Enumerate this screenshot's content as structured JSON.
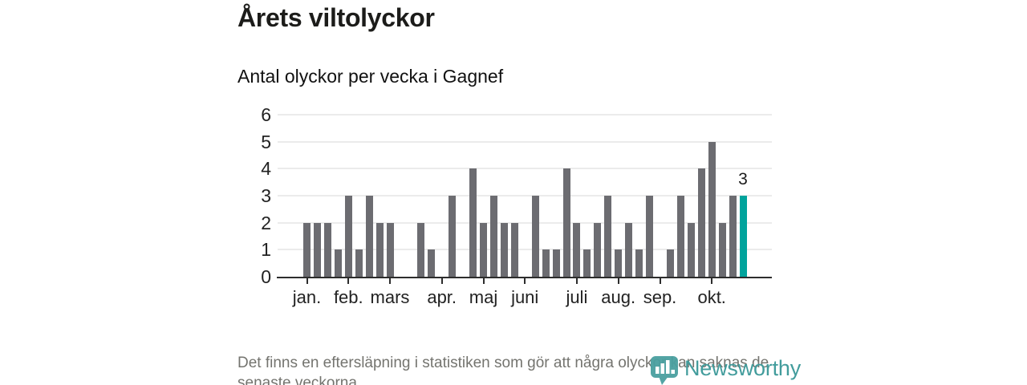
{
  "header": {
    "title": "Årets viltolyckor",
    "subtitle": "Antal olyckor per vecka i Gagnef"
  },
  "chart_data": {
    "type": "bar",
    "title": "Årets viltolyckor",
    "subtitle": "Antal olyckor per vecka i Gagnef",
    "x_unit": "vecka (week of year)",
    "weeks": [
      1,
      2,
      3,
      4,
      5,
      6,
      7,
      8,
      9,
      10,
      11,
      12,
      13,
      14,
      15,
      16,
      17,
      18,
      19,
      20,
      21,
      22,
      23,
      24,
      25,
      26,
      27,
      28,
      29,
      30,
      31,
      32,
      33,
      34,
      35,
      36,
      37,
      38,
      39,
      40,
      41,
      42,
      43
    ],
    "values": [
      2,
      2,
      2,
      1,
      3,
      1,
      3,
      2,
      2,
      0,
      0,
      2,
      1,
      0,
      3,
      0,
      4,
      2,
      3,
      2,
      2,
      0,
      3,
      1,
      1,
      4,
      2,
      1,
      2,
      3,
      1,
      2,
      1,
      3,
      0,
      1,
      3,
      2,
      4,
      5,
      2,
      3,
      3
    ],
    "highlight_last_index": 42,
    "highlight_label": "3",
    "month_ticks": [
      {
        "label": "jan.",
        "week": 1
      },
      {
        "label": "feb.",
        "week": 5
      },
      {
        "label": "mars",
        "week": 9
      },
      {
        "label": "apr.",
        "week": 14
      },
      {
        "label": "maj",
        "week": 18
      },
      {
        "label": "juni",
        "week": 22
      },
      {
        "label": "juli",
        "week": 27
      },
      {
        "label": "aug.",
        "week": 31
      },
      {
        "label": "sep.",
        "week": 35
      },
      {
        "label": "okt.",
        "week": 40
      }
    ],
    "yticks": [
      0,
      1,
      2,
      3,
      4,
      5,
      6
    ],
    "ylim": [
      0,
      6
    ],
    "grid": true,
    "legend": "none",
    "bar_color": "#6c6c71",
    "highlight_color": "#00a39c",
    "axis_color": "#2d2d2d",
    "gridline_color": "#ebebeb"
  },
  "footer": {
    "note_lines": [
      "Det finns en eftersläpning i statistiken som gör att några olyckor kan saknas de",
      "senaste veckorna."
    ]
  },
  "logo": {
    "text": "Newsworthy",
    "color": "#429c9c"
  }
}
